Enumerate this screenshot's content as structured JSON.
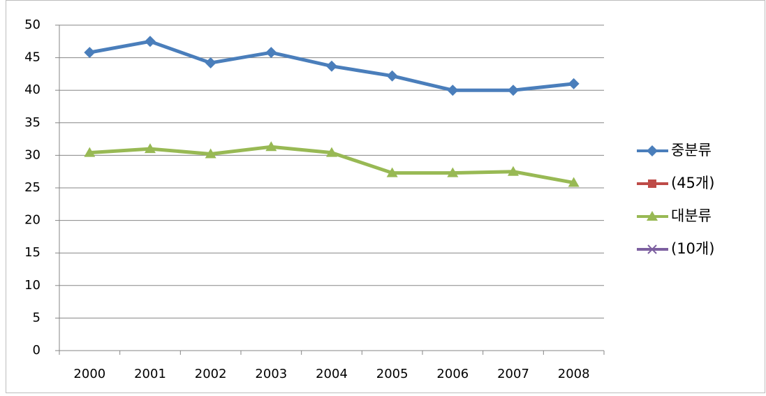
{
  "chart_data": {
    "type": "line",
    "categories": [
      "2000",
      "2001",
      "2002",
      "2003",
      "2004",
      "2005",
      "2006",
      "2007",
      "2008"
    ],
    "series": [
      {
        "name": "중분류",
        "color": "#4a7ebb",
        "marker": "diamond",
        "values": [
          45.8,
          47.5,
          44.2,
          45.8,
          43.7,
          42.2,
          40.0,
          40.0,
          41.0
        ]
      },
      {
        "name": "(45개)",
        "color": "#be4b48",
        "marker": "square",
        "values": [
          null,
          null,
          null,
          null,
          null,
          null,
          null,
          null,
          null
        ]
      },
      {
        "name": "대분류",
        "color": "#98b954",
        "marker": "triangle",
        "values": [
          30.4,
          31.0,
          30.2,
          31.3,
          30.4,
          27.3,
          27.3,
          27.5,
          25.8
        ]
      },
      {
        "name": "(10개)",
        "color": "#7d60a0",
        "marker": "x",
        "values": [
          null,
          null,
          null,
          null,
          null,
          null,
          null,
          null,
          null
        ]
      }
    ],
    "ylim": [
      0,
      50
    ],
    "yticks": [
      0,
      5,
      10,
      15,
      20,
      25,
      30,
      35,
      40,
      45,
      50
    ],
    "grid": true,
    "legend": "right"
  }
}
